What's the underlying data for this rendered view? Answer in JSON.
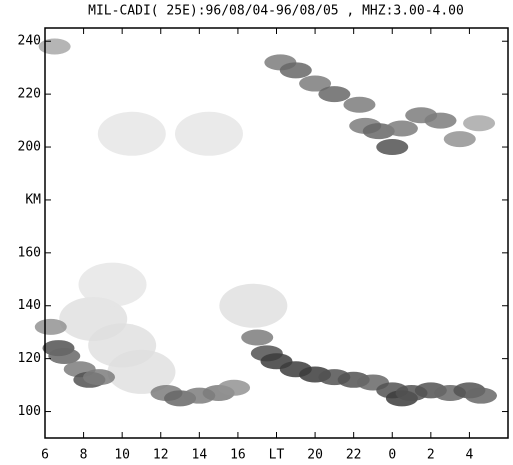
{
  "chart_data": {
    "type": "heatmap",
    "title": "MIL-CADI( 25E):96/08/04-96/08/05 , MHZ:3.00-4.00",
    "xlim": [
      6,
      30
    ],
    "ylim": [
      90,
      245
    ],
    "xticks": [
      6,
      8,
      10,
      12,
      14,
      16,
      {
        "value": 18,
        "label": "LT"
      },
      20,
      22,
      {
        "value": 24,
        "label": "0"
      },
      {
        "value": 26,
        "label": "2"
      },
      {
        "value": 28,
        "label": "4"
      }
    ],
    "yticks": [
      100,
      120,
      140,
      160,
      {
        "value": 180,
        "label": "KM"
      },
      200,
      220,
      240
    ],
    "x": [
      8.5,
      10,
      11,
      9.5,
      10.5,
      14.5,
      16.8,
      6.3,
      6.7,
      7.0,
      7.8,
      8.3,
      8.8,
      12.3,
      13,
      14,
      15,
      15.8,
      17,
      17.5,
      18,
      19,
      20,
      21,
      22,
      23,
      24,
      24.5,
      25,
      26,
      27,
      28,
      28.6,
      6.5,
      18.2,
      19,
      20,
      21,
      22.3,
      22.6,
      23.3,
      24,
      24.5,
      25.5,
      26.5,
      27.5,
      28.5
    ],
    "y": [
      135,
      125,
      115,
      148,
      205,
      205,
      140,
      132,
      124,
      121,
      116,
      112,
      113,
      107,
      105,
      106,
      107,
      109,
      128,
      122,
      119,
      116,
      114,
      113,
      112,
      111,
      108,
      105,
      107,
      108,
      107,
      108,
      106,
      238,
      232,
      229,
      224,
      220,
      216,
      208,
      206,
      200,
      207,
      212,
      210,
      203,
      209
    ],
    "z": [
      0.15,
      0.15,
      0.15,
      0.12,
      0.12,
      0.12,
      0.15,
      0.5,
      0.8,
      0.7,
      0.6,
      0.8,
      0.6,
      0.6,
      0.7,
      0.6,
      0.6,
      0.5,
      0.6,
      0.8,
      0.9,
      0.9,
      0.9,
      0.8,
      0.8,
      0.7,
      0.8,
      0.9,
      0.8,
      0.8,
      0.7,
      0.8,
      0.7,
      0.4,
      0.6,
      0.7,
      0.6,
      0.7,
      0.6,
      0.6,
      0.7,
      0.8,
      0.6,
      0.6,
      0.6,
      0.5,
      0.4
    ]
  }
}
